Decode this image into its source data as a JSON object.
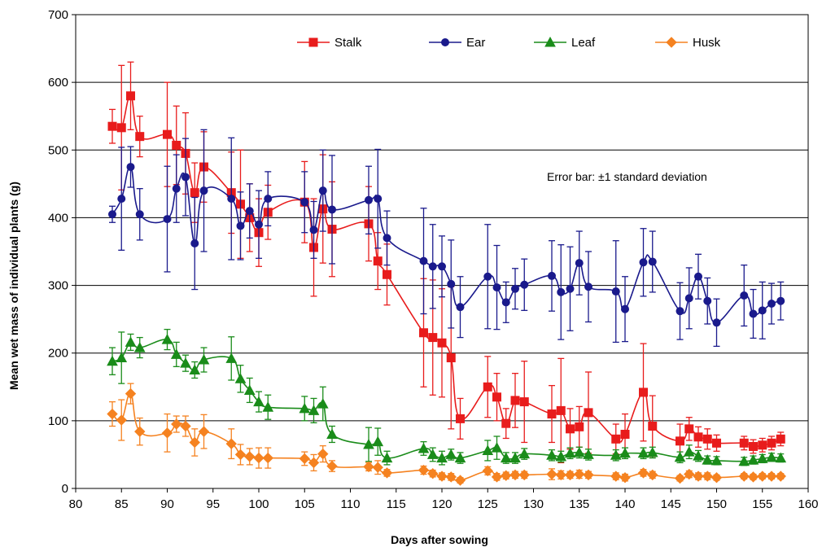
{
  "chart_data": {
    "type": "line",
    "xlabel": "Days after sowing",
    "ylabel": "Mean wet mass of individual plants (g)",
    "annotation": "Error bar: ±1 standard deviation",
    "xlim": [
      80,
      160
    ],
    "ylim": [
      0,
      700
    ],
    "xticks": [
      "80",
      "85",
      "90",
      "95",
      "100",
      "105",
      "110",
      "115",
      "120",
      "125",
      "130",
      "135",
      "140",
      "145",
      "150",
      "155",
      "160"
    ],
    "yticks": [
      "0",
      "100",
      "200",
      "300",
      "400",
      "500",
      "600",
      "700"
    ],
    "grid": "horizontal",
    "legend_position": "top",
    "series": [
      {
        "name": "Stalk",
        "color": "#e81c1c",
        "marker": "square",
        "x": [
          84,
          85,
          86,
          87,
          90,
          91,
          92,
          93,
          94,
          97,
          98,
          99,
          100,
          101,
          105,
          106,
          107,
          108,
          112,
          113,
          114,
          118,
          119,
          120,
          121,
          122,
          125,
          126,
          127,
          128,
          129,
          132,
          133,
          134,
          135,
          136,
          139,
          140,
          142,
          143,
          146,
          147,
          148,
          149,
          150,
          153,
          154,
          155,
          156,
          157
        ],
        "y": [
          535,
          533,
          580,
          520,
          523,
          507,
          495,
          437,
          475,
          437,
          420,
          400,
          378,
          408,
          423,
          356,
          413,
          383,
          391,
          336,
          316,
          230,
          223,
          215,
          193,
          103,
          150,
          135,
          96,
          130,
          128,
          110,
          115,
          88,
          91,
          112,
          73,
          80,
          142,
          92,
          70,
          88,
          76,
          73,
          67,
          67,
          62,
          64,
          67,
          73
        ],
        "err": [
          25,
          92,
          50,
          30,
          77,
          58,
          60,
          44,
          52,
          60,
          80,
          50,
          50,
          40,
          60,
          72,
          80,
          70,
          55,
          42,
          45,
          80,
          85,
          80,
          105,
          30,
          45,
          35,
          22,
          40,
          60,
          42,
          77,
          30,
          30,
          60,
          22,
          30,
          72,
          45,
          25,
          17,
          15,
          15,
          12,
          10,
          10,
          10,
          10,
          10
        ]
      },
      {
        "name": "Ear",
        "color": "#1a1a8c",
        "marker": "circle",
        "x": [
          84,
          85,
          86,
          87,
          90,
          91,
          92,
          93,
          94,
          97,
          98,
          99,
          100,
          101,
          105,
          106,
          107,
          108,
          112,
          113,
          114,
          118,
          119,
          120,
          121,
          122,
          125,
          126,
          127,
          128,
          129,
          132,
          133,
          134,
          135,
          136,
          139,
          140,
          142,
          143,
          146,
          147,
          148,
          149,
          150,
          153,
          154,
          155,
          156,
          157
        ],
        "y": [
          405,
          428,
          475,
          405,
          398,
          443,
          460,
          362,
          440,
          428,
          388,
          410,
          390,
          428,
          423,
          382,
          440,
          412,
          426,
          428,
          370,
          336,
          328,
          328,
          302,
          268,
          313,
          297,
          275,
          295,
          301,
          314,
          290,
          295,
          333,
          298,
          291,
          265,
          334,
          335,
          262,
          281,
          313,
          277,
          245,
          285,
          258,
          263,
          273,
          277
        ],
        "err": [
          12,
          76,
          30,
          38,
          78,
          50,
          57,
          68,
          90,
          90,
          50,
          40,
          50,
          40,
          45,
          42,
          60,
          80,
          50,
          73,
          40,
          78,
          62,
          45,
          65,
          45,
          77,
          62,
          30,
          30,
          38,
          52,
          70,
          62,
          47,
          52,
          75,
          48,
          50,
          45,
          42,
          45,
          33,
          34,
          35,
          45,
          36,
          42,
          30,
          28
        ]
      },
      {
        "name": "Leaf",
        "color": "#1a8c1a",
        "marker": "triangle",
        "x": [
          84,
          85,
          86,
          87,
          90,
          91,
          92,
          93,
          94,
          97,
          98,
          99,
          100,
          101,
          105,
          106,
          107,
          108,
          112,
          113,
          114,
          118,
          119,
          120,
          121,
          122,
          125,
          126,
          127,
          128,
          129,
          132,
          133,
          134,
          135,
          136,
          139,
          140,
          142,
          143,
          146,
          147,
          148,
          149,
          150,
          153,
          154,
          155,
          156,
          157
        ],
        "y": [
          188,
          193,
          216,
          208,
          220,
          198,
          185,
          175,
          190,
          192,
          162,
          145,
          128,
          120,
          118,
          115,
          125,
          80,
          65,
          69,
          45,
          59,
          50,
          45,
          50,
          45,
          56,
          60,
          45,
          45,
          51,
          49,
          47,
          52,
          53,
          50,
          49,
          52,
          52,
          53,
          46,
          54,
          48,
          42,
          41,
          40,
          42,
          44,
          46,
          45
        ],
        "err": [
          20,
          38,
          12,
          15,
          15,
          18,
          12,
          12,
          18,
          32,
          20,
          18,
          15,
          18,
          18,
          18,
          25,
          12,
          25,
          20,
          10,
          10,
          10,
          10,
          8,
          8,
          15,
          17,
          8,
          8,
          8,
          8,
          8,
          8,
          8,
          8,
          8,
          8,
          8,
          8,
          8,
          10,
          8,
          6,
          6,
          6,
          6,
          6,
          6,
          6
        ]
      },
      {
        "name": "Husk",
        "color": "#f58220",
        "marker": "diamond",
        "x": [
          84,
          85,
          86,
          87,
          90,
          91,
          92,
          93,
          94,
          97,
          98,
          99,
          100,
          101,
          105,
          106,
          107,
          108,
          112,
          113,
          114,
          118,
          119,
          120,
          121,
          122,
          125,
          126,
          127,
          128,
          129,
          132,
          133,
          134,
          135,
          136,
          139,
          140,
          142,
          143,
          146,
          147,
          148,
          149,
          150,
          153,
          154,
          155,
          156,
          157
        ],
        "y": [
          110,
          101,
          140,
          84,
          82,
          95,
          92,
          68,
          84,
          66,
          50,
          47,
          45,
          45,
          44,
          38,
          51,
          33,
          32,
          31,
          23,
          27,
          22,
          18,
          17,
          12,
          26,
          17,
          19,
          20,
          20,
          21,
          20,
          20,
          21,
          20,
          18,
          16,
          23,
          20,
          15,
          21,
          18,
          18,
          16,
          18,
          17,
          18,
          18,
          18
        ],
        "err": [
          18,
          30,
          15,
          20,
          28,
          12,
          15,
          20,
          25,
          22,
          15,
          12,
          15,
          15,
          10,
          12,
          12,
          8,
          6,
          10,
          5,
          6,
          5,
          5,
          5,
          4,
          6,
          5,
          5,
          5,
          5,
          8,
          6,
          5,
          6,
          5,
          5,
          5,
          5,
          5,
          4,
          5,
          5,
          5,
          4,
          4,
          4,
          4,
          4,
          4
        ]
      }
    ]
  }
}
